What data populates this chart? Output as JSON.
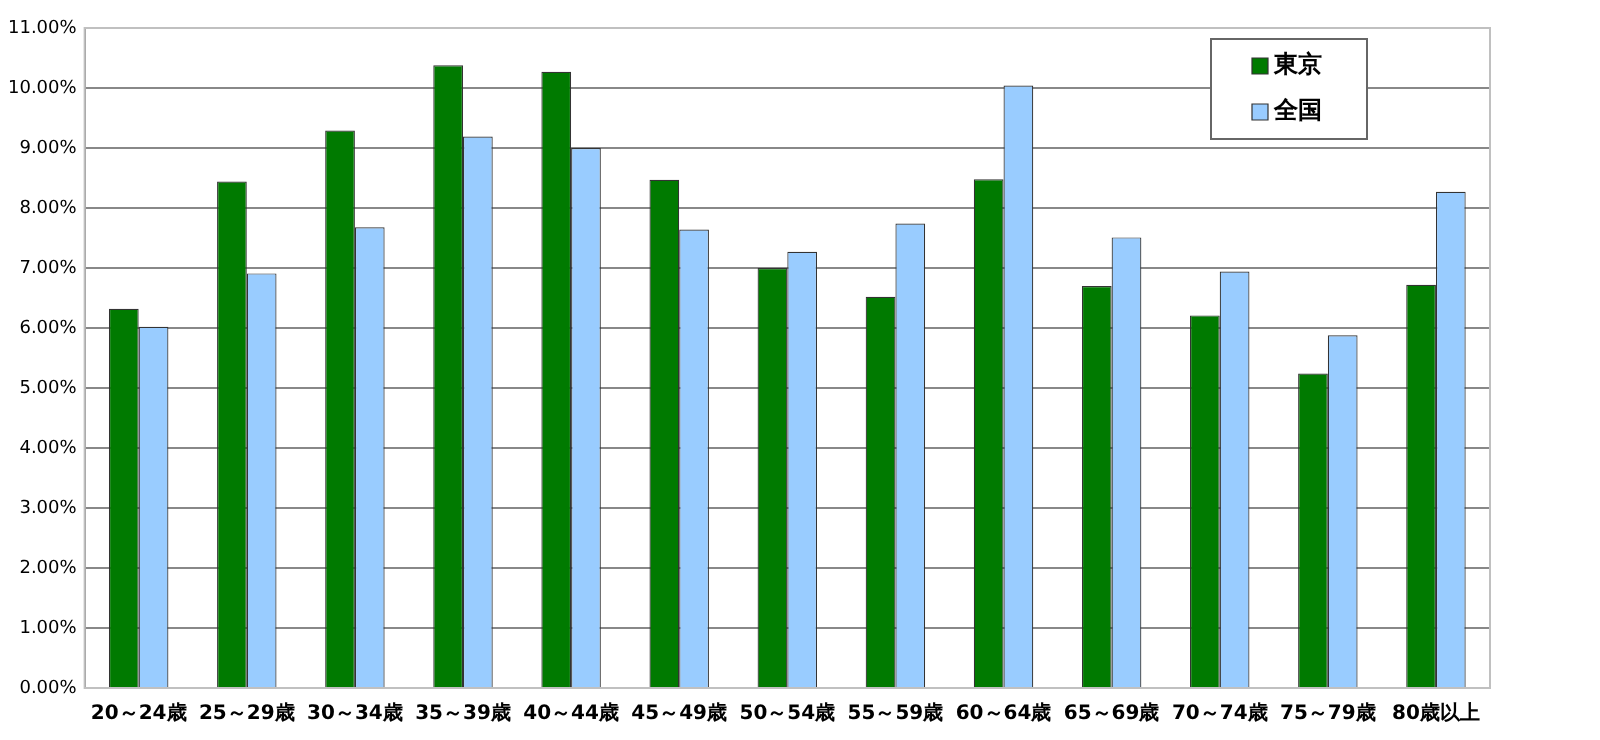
{
  "chart_data": {
    "type": "bar",
    "categories": [
      "20～24歳",
      "25～29歳",
      "30～34歳",
      "35～39歳",
      "40～44歳",
      "45～49歳",
      "50～54歳",
      "55～59歳",
      "60～64歳",
      "65～69歳",
      "70～74歳",
      "75～79歳",
      "80歳以上"
    ],
    "series": [
      {
        "name": "東京",
        "color": "#007a00",
        "values": [
          6.32,
          8.44,
          9.29,
          10.38,
          10.27,
          8.47,
          7.0,
          6.52,
          8.48,
          6.7,
          6.21,
          5.24,
          6.72
        ]
      },
      {
        "name": "全国",
        "color": "#99ccff",
        "values": [
          6.02,
          6.91,
          7.68,
          9.19,
          9.0,
          7.64,
          7.27,
          7.74,
          10.04,
          7.51,
          6.94,
          5.88,
          8.27
        ]
      }
    ],
    "ylim": [
      0,
      11
    ],
    "yticks": [
      {
        "value": 0,
        "label": "0.00%"
      },
      {
        "value": 1,
        "label": "1.00%"
      },
      {
        "value": 2,
        "label": "2.00%"
      },
      {
        "value": 3,
        "label": "3.00%"
      },
      {
        "value": 4,
        "label": "4.00%"
      },
      {
        "value": 5,
        "label": "5.00%"
      },
      {
        "value": 6,
        "label": "6.00%"
      },
      {
        "value": 7,
        "label": "7.00%"
      },
      {
        "value": 8,
        "label": "8.00%"
      },
      {
        "value": 9,
        "label": "9.00%"
      },
      {
        "value": 10,
        "label": "10.00%"
      },
      {
        "value": 11,
        "label": "11.00%"
      }
    ],
    "grid": "y",
    "legend": "top right"
  }
}
